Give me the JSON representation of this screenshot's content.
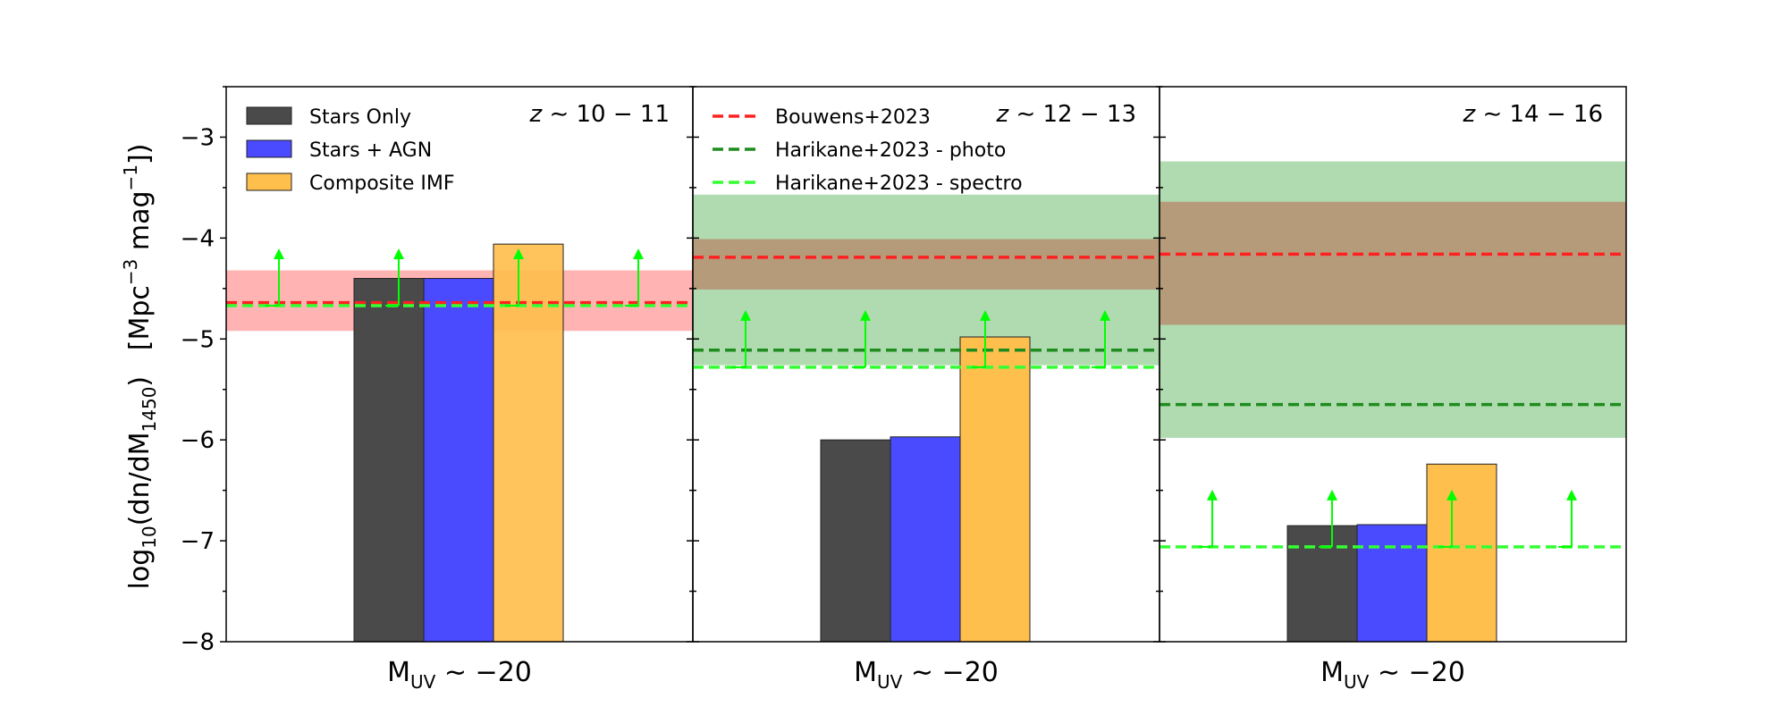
{
  "chart_data": {
    "type": "bar",
    "ylabel": {
      "prefix": "log",
      "sub1": "10",
      "mid": "(dn/dM",
      "sub2": "1450",
      "after": ")   [Mpc",
      "sup1": "−3",
      "mag": " mag",
      "sup2": "−1",
      "end": "])"
    },
    "xlabel": {
      "main": "M",
      "sub": "UV",
      "rest": " ∼ −20"
    },
    "ylim": [
      -8,
      -2.5
    ],
    "yticks": [
      -8,
      -7,
      -6,
      -5,
      -4,
      -3
    ],
    "ytick_labels": [
      "−8",
      "−7",
      "−6",
      "−5",
      "−4",
      "−3"
    ],
    "series": [
      {
        "name": "Stars Only",
        "color": "#4a4a4a"
      },
      {
        "name": "Stars + AGN",
        "color": "#4a4aff"
      },
      {
        "name": "Composite IMF",
        "color": "#ffbf4d"
      }
    ],
    "reference_lines": [
      {
        "name": "Bouwens+2023",
        "color": "#ff2020"
      },
      {
        "name": "Harikane+2023 - photo",
        "color": "#1e8c1e"
      },
      {
        "name": "Harikane+2023 - spectro",
        "color": "#33ff33"
      }
    ],
    "panels": [
      {
        "label": {
          "z": "z",
          "range": " ∼ 10 − 11"
        },
        "values": [
          -4.4,
          -4.4,
          -4.06
        ],
        "bouwens": {
          "value": -4.64,
          "band": [
            -4.92,
            -4.32
          ],
          "band_color": "#ff8080"
        },
        "harikane_photo": {
          "value": -4.67,
          "band": null
        },
        "harikane_spectro": {
          "value": -4.67,
          "lower_limit": true
        }
      },
      {
        "label": {
          "z": "z",
          "range": " ∼ 12 − 13"
        },
        "values": [
          -6.0,
          -5.97,
          -4.98
        ],
        "bouwens": {
          "value": -4.19,
          "band": [
            -4.51,
            -4.01
          ],
          "band_color": "#b8866a"
        },
        "harikane_photo": {
          "value": -5.11,
          "band": [
            -5.26,
            -3.57
          ]
        },
        "harikane_spectro": {
          "value": -5.28,
          "lower_limit": true
        }
      },
      {
        "label": {
          "z": "z",
          "range": " ∼ 14 − 16"
        },
        "values": [
          -6.85,
          -6.84,
          -6.24
        ],
        "bouwens": {
          "value": -4.16,
          "band": [
            -4.86,
            -3.64
          ],
          "band_color": "#b8866a"
        },
        "harikane_photo": {
          "value": -5.65,
          "band": [
            -5.98,
            -3.24
          ]
        },
        "harikane_spectro": {
          "value": -7.06,
          "lower_limit": true
        }
      }
    ],
    "legend_panel_1": [
      "Stars Only",
      "Stars + AGN",
      "Composite IMF"
    ],
    "legend_panel_2": [
      "Bouwens+2023",
      "Harikane+2023 - photo",
      "Harikane+2023 - spectro"
    ]
  }
}
